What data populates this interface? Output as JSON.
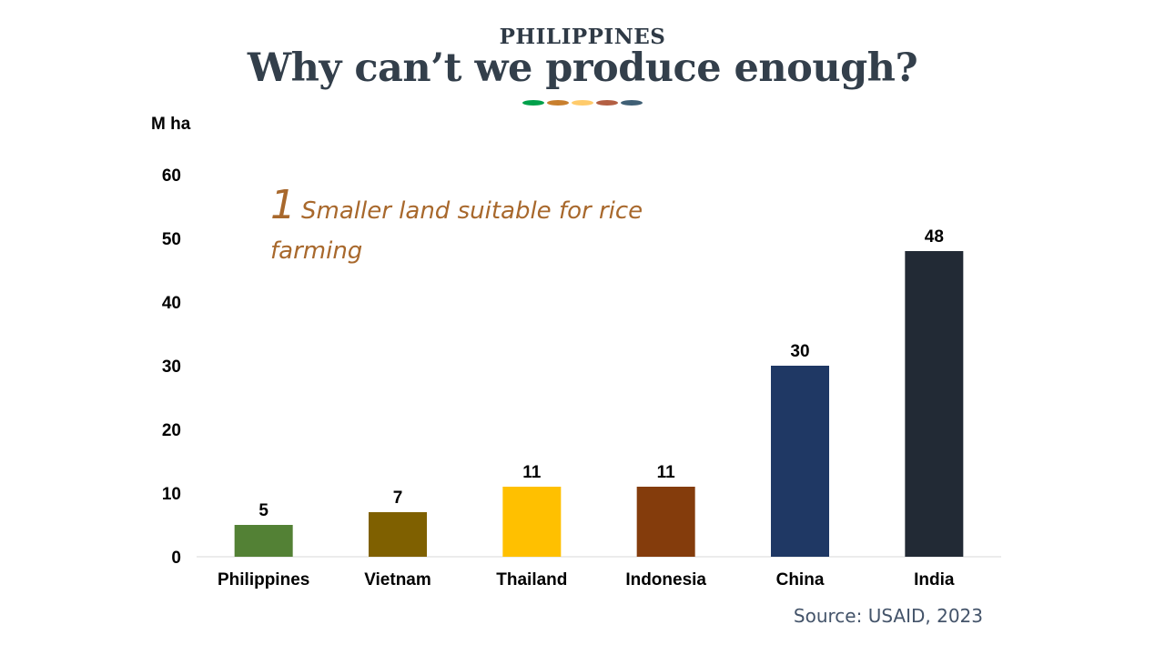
{
  "header": {
    "supertitle": "PHILIPPINES",
    "title": "Why can’t we produce enough?",
    "dot_colors": [
      "#00a04a",
      "#c87f2e",
      "#ffcb6b",
      "#b35f43",
      "#3f5f75"
    ]
  },
  "annotation": {
    "number": "1",
    "text": "Smaller land suitable for rice farming"
  },
  "source": "Source: USAID, 2023",
  "chart_data": {
    "type": "bar",
    "unit_label": "M ha",
    "categories": [
      "Philippines",
      "Vietnam",
      "Thailand",
      "Indonesia",
      "China",
      "India"
    ],
    "values": [
      5,
      7,
      11,
      11,
      30,
      48
    ],
    "colors": [
      "#538135",
      "#7f6000",
      "#ffc000",
      "#843c0c",
      "#1f3864",
      "#222a35"
    ],
    "yticks": [
      0,
      10,
      20,
      30,
      40,
      50,
      60
    ],
    "ylim": [
      0,
      60
    ],
    "grid": false,
    "legend": "none"
  }
}
